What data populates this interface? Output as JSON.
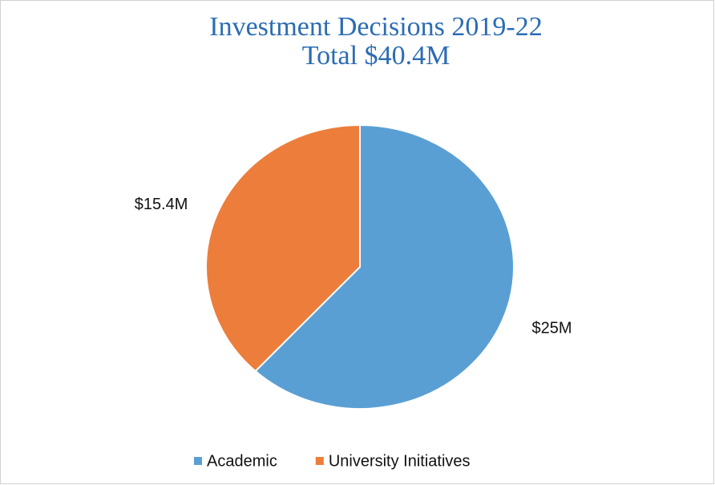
{
  "chart_data": {
    "type": "pie",
    "title": "Investment Decisions 2019-22",
    "subtitle": "Total $40.4M",
    "categories": [
      "Academic",
      "University Initiatives"
    ],
    "values": [
      25,
      15.4
    ],
    "value_labels": [
      "$25M",
      "$15.4M"
    ],
    "colors": [
      "#5a9fd4",
      "#ed7d3b"
    ],
    "legend": "bottom"
  }
}
